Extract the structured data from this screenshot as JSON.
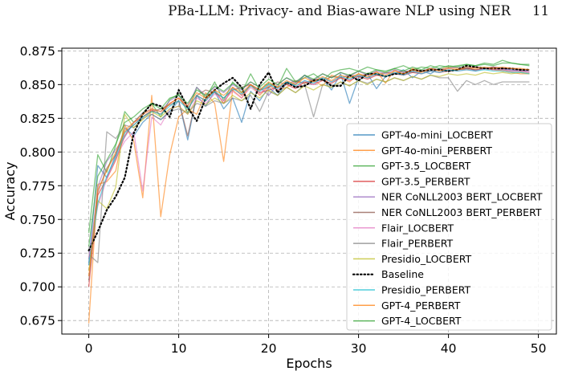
{
  "header": {
    "running_title": "PBa-LLM: Privacy- and Bias-aware NLP using NER",
    "page_number": "11"
  },
  "chart_data": {
    "type": "line",
    "title": "",
    "xlabel": "Epochs",
    "ylabel": "Accuracy",
    "xlim": [
      -3,
      52
    ],
    "ylim": [
      0.665,
      0.877
    ],
    "xticks": [
      0,
      10,
      20,
      30,
      40,
      50
    ],
    "yticks": [
      0.675,
      0.7,
      0.725,
      0.75,
      0.775,
      0.8,
      0.825,
      0.85,
      0.875
    ],
    "ytick_labels": [
      "0.675",
      "0.700",
      "0.725",
      "0.750",
      "0.775",
      "0.800",
      "0.825",
      "0.850",
      "0.875"
    ],
    "grid": true,
    "legend_position": "lower-right",
    "series": [
      {
        "name": "GPT-4o-mini_LOCBERT",
        "color": "#1f77b4",
        "style": "solid",
        "values": [
          0.718,
          0.79,
          0.781,
          0.798,
          0.818,
          0.812,
          0.822,
          0.828,
          0.824,
          0.83,
          0.838,
          0.809,
          0.842,
          0.834,
          0.845,
          0.832,
          0.84,
          0.822,
          0.845,
          0.838,
          0.848,
          0.842,
          0.851,
          0.85,
          0.857,
          0.852,
          0.854,
          0.846,
          0.858,
          0.836,
          0.855,
          0.858,
          0.847,
          0.856,
          0.858,
          0.861,
          0.855,
          0.86,
          0.858,
          0.862,
          0.86,
          0.861,
          0.863,
          0.86,
          0.862,
          0.863,
          0.862,
          0.861,
          0.86,
          0.861
        ]
      },
      {
        "name": "GPT-4o-mini_PERBERT",
        "color": "#ff7f0e",
        "style": "solid",
        "values": [
          0.673,
          0.776,
          0.778,
          0.786,
          0.82,
          0.808,
          0.766,
          0.842,
          0.752,
          0.798,
          0.826,
          0.832,
          0.828,
          0.844,
          0.836,
          0.793,
          0.846,
          0.84,
          0.85,
          0.842,
          0.849,
          0.846,
          0.848,
          0.852,
          0.851,
          0.853,
          0.849,
          0.857,
          0.855,
          0.852,
          0.858,
          0.855,
          0.86,
          0.851,
          0.861,
          0.857,
          0.862,
          0.86,
          0.862,
          0.861,
          0.863,
          0.862,
          0.861,
          0.863,
          0.862,
          0.861,
          0.86,
          0.859,
          0.858,
          0.858
        ]
      },
      {
        "name": "GPT-3.5_LOCBERT",
        "color": "#2ca02c",
        "style": "solid",
        "values": [
          0.74,
          0.798,
          0.785,
          0.805,
          0.83,
          0.822,
          0.829,
          0.836,
          0.826,
          0.839,
          0.843,
          0.829,
          0.848,
          0.84,
          0.852,
          0.838,
          0.852,
          0.844,
          0.858,
          0.846,
          0.851,
          0.848,
          0.862,
          0.852,
          0.855,
          0.858,
          0.853,
          0.859,
          0.861,
          0.862,
          0.86,
          0.863,
          0.861,
          0.86,
          0.862,
          0.864,
          0.861,
          0.863,
          0.862,
          0.864,
          0.863,
          0.864,
          0.865,
          0.864,
          0.865,
          0.864,
          0.866,
          0.866,
          0.865,
          0.865
        ]
      },
      {
        "name": "GPT-3.5_PERBERT",
        "color": "#d62728",
        "style": "solid",
        "values": [
          0.7,
          0.768,
          0.78,
          0.794,
          0.812,
          0.822,
          0.826,
          0.831,
          0.828,
          0.836,
          0.84,
          0.832,
          0.842,
          0.838,
          0.846,
          0.836,
          0.848,
          0.842,
          0.85,
          0.844,
          0.846,
          0.848,
          0.85,
          0.847,
          0.852,
          0.85,
          0.853,
          0.851,
          0.855,
          0.853,
          0.856,
          0.854,
          0.857,
          0.856,
          0.858,
          0.857,
          0.859,
          0.858,
          0.86,
          0.859,
          0.86,
          0.861,
          0.862,
          0.861,
          0.862,
          0.863,
          0.862,
          0.862,
          0.861,
          0.861
        ]
      },
      {
        "name": "NER CoNLL2003 BERT_LOCBERT",
        "color": "#9467bd",
        "style": "solid",
        "values": [
          0.716,
          0.774,
          0.793,
          0.802,
          0.811,
          0.822,
          0.829,
          0.832,
          0.83,
          0.838,
          0.842,
          0.834,
          0.848,
          0.842,
          0.848,
          0.844,
          0.85,
          0.846,
          0.852,
          0.848,
          0.842,
          0.85,
          0.855,
          0.851,
          0.857,
          0.853,
          0.858,
          0.855,
          0.859,
          0.856,
          0.86,
          0.857,
          0.86,
          0.858,
          0.861,
          0.859,
          0.861,
          0.86,
          0.862,
          0.861,
          0.862,
          0.863,
          0.862,
          0.863,
          0.862,
          0.862,
          0.861,
          0.861,
          0.86,
          0.86
        ]
      },
      {
        "name": "NER CoNLL2003 BERT_PERBERT",
        "color": "#8c564b",
        "style": "solid",
        "values": [
          0.705,
          0.77,
          0.788,
          0.798,
          0.815,
          0.82,
          0.826,
          0.83,
          0.832,
          0.835,
          0.838,
          0.812,
          0.842,
          0.846,
          0.844,
          0.84,
          0.846,
          0.848,
          0.85,
          0.846,
          0.848,
          0.852,
          0.85,
          0.853,
          0.851,
          0.854,
          0.853,
          0.856,
          0.855,
          0.857,
          0.856,
          0.858,
          0.857,
          0.859,
          0.858,
          0.86,
          0.859,
          0.86,
          0.86,
          0.861,
          0.86,
          0.861,
          0.862,
          0.861,
          0.862,
          0.861,
          0.861,
          0.86,
          0.86,
          0.859
        ]
      },
      {
        "name": "Flair_LOCBERT",
        "color": "#e377c2",
        "style": "solid",
        "values": [
          0.722,
          0.76,
          0.78,
          0.796,
          0.808,
          0.815,
          0.771,
          0.826,
          0.82,
          0.832,
          0.834,
          0.828,
          0.84,
          0.836,
          0.843,
          0.838,
          0.845,
          0.84,
          0.848,
          0.843,
          0.85,
          0.846,
          0.852,
          0.848,
          0.853,
          0.85,
          0.855,
          0.852,
          0.856,
          0.853,
          0.857,
          0.855,
          0.858,
          0.856,
          0.859,
          0.857,
          0.86,
          0.858,
          0.86,
          0.859,
          0.861,
          0.86,
          0.861,
          0.86,
          0.862,
          0.861,
          0.861,
          0.86,
          0.86,
          0.859
        ]
      },
      {
        "name": "Flair_PERBERT",
        "color": "#7f7f7f",
        "style": "solid",
        "values": [
          0.724,
          0.718,
          0.815,
          0.81,
          0.82,
          0.818,
          0.825,
          0.828,
          0.824,
          0.83,
          0.832,
          0.829,
          0.836,
          0.834,
          0.838,
          0.836,
          0.84,
          0.838,
          0.842,
          0.83,
          0.845,
          0.842,
          0.848,
          0.844,
          0.85,
          0.826,
          0.85,
          0.848,
          0.852,
          0.849,
          0.853,
          0.851,
          0.854,
          0.852,
          0.855,
          0.853,
          0.856,
          0.854,
          0.857,
          0.855,
          0.855,
          0.845,
          0.853,
          0.85,
          0.853,
          0.85,
          0.852,
          0.852,
          0.852,
          0.852
        ]
      },
      {
        "name": "Presidio_LOCBERT",
        "color": "#bcbd22",
        "style": "solid",
        "values": [
          0.712,
          0.764,
          0.758,
          0.774,
          0.828,
          0.818,
          0.824,
          0.83,
          0.826,
          0.832,
          0.834,
          0.828,
          0.838,
          0.835,
          0.84,
          0.836,
          0.842,
          0.838,
          0.844,
          0.84,
          0.846,
          0.842,
          0.848,
          0.844,
          0.849,
          0.846,
          0.85,
          0.848,
          0.852,
          0.849,
          0.853,
          0.85,
          0.854,
          0.852,
          0.855,
          0.853,
          0.856,
          0.854,
          0.857,
          0.856,
          0.858,
          0.857,
          0.858,
          0.857,
          0.859,
          0.858,
          0.859,
          0.858,
          0.859,
          0.858
        ]
      },
      {
        "name": "Baseline",
        "color": "#000000",
        "style": "dotted",
        "values": [
          0.727,
          0.741,
          0.757,
          0.767,
          0.781,
          0.814,
          0.828,
          0.836,
          0.834,
          0.826,
          0.846,
          0.833,
          0.823,
          0.84,
          0.846,
          0.851,
          0.855,
          0.848,
          0.832,
          0.85,
          0.859,
          0.844,
          0.852,
          0.848,
          0.849,
          0.853,
          0.854,
          0.849,
          0.849,
          0.857,
          0.853,
          0.858,
          0.858,
          0.856,
          0.858,
          0.858,
          0.861,
          0.86,
          0.861,
          0.861,
          0.86,
          0.861,
          0.864,
          0.863,
          0.862,
          0.862,
          0.862,
          0.862,
          0.861,
          0.861
        ]
      },
      {
        "name": "Presidio_PERBERT",
        "color": "#17becf",
        "style": "solid",
        "values": [
          0.716,
          0.762,
          0.782,
          0.796,
          0.814,
          0.82,
          0.826,
          0.83,
          0.828,
          0.834,
          0.838,
          0.832,
          0.842,
          0.838,
          0.845,
          0.84,
          0.847,
          0.843,
          0.849,
          0.845,
          0.85,
          0.847,
          0.852,
          0.849,
          0.853,
          0.851,
          0.855,
          0.852,
          0.856,
          0.854,
          0.857,
          0.855,
          0.858,
          0.856,
          0.859,
          0.857,
          0.86,
          0.858,
          0.86,
          0.859,
          0.861,
          0.86,
          0.861,
          0.86,
          0.861,
          0.86,
          0.86,
          0.859,
          0.859,
          0.858
        ]
      },
      {
        "name": "GPT-4_PERBERT",
        "color": "#ff7f0e",
        "style": "solid",
        "values": [
          0.708,
          0.772,
          0.786,
          0.8,
          0.816,
          0.822,
          0.828,
          0.832,
          0.83,
          0.836,
          0.84,
          0.834,
          0.844,
          0.84,
          0.846,
          0.842,
          0.848,
          0.844,
          0.85,
          0.846,
          0.852,
          0.848,
          0.853,
          0.85,
          0.855,
          0.852,
          0.856,
          0.853,
          0.857,
          0.855,
          0.858,
          0.856,
          0.859,
          0.857,
          0.86,
          0.858,
          0.861,
          0.859,
          0.862,
          0.86,
          0.862,
          0.861,
          0.863,
          0.862,
          0.863,
          0.862,
          0.863,
          0.862,
          0.862,
          0.861
        ]
      },
      {
        "name": "GPT-4_LOCBERT",
        "color": "#2ca02c",
        "style": "solid",
        "values": [
          0.73,
          0.782,
          0.794,
          0.806,
          0.822,
          0.826,
          0.832,
          0.836,
          0.832,
          0.84,
          0.842,
          0.836,
          0.846,
          0.842,
          0.849,
          0.845,
          0.851,
          0.847,
          0.852,
          0.848,
          0.854,
          0.85,
          0.855,
          0.852,
          0.857,
          0.854,
          0.858,
          0.855,
          0.859,
          0.857,
          0.86,
          0.858,
          0.861,
          0.859,
          0.862,
          0.86,
          0.863,
          0.861,
          0.864,
          0.862,
          0.864,
          0.863,
          0.865,
          0.864,
          0.866,
          0.865,
          0.868,
          0.866,
          0.865,
          0.864
        ]
      }
    ]
  }
}
